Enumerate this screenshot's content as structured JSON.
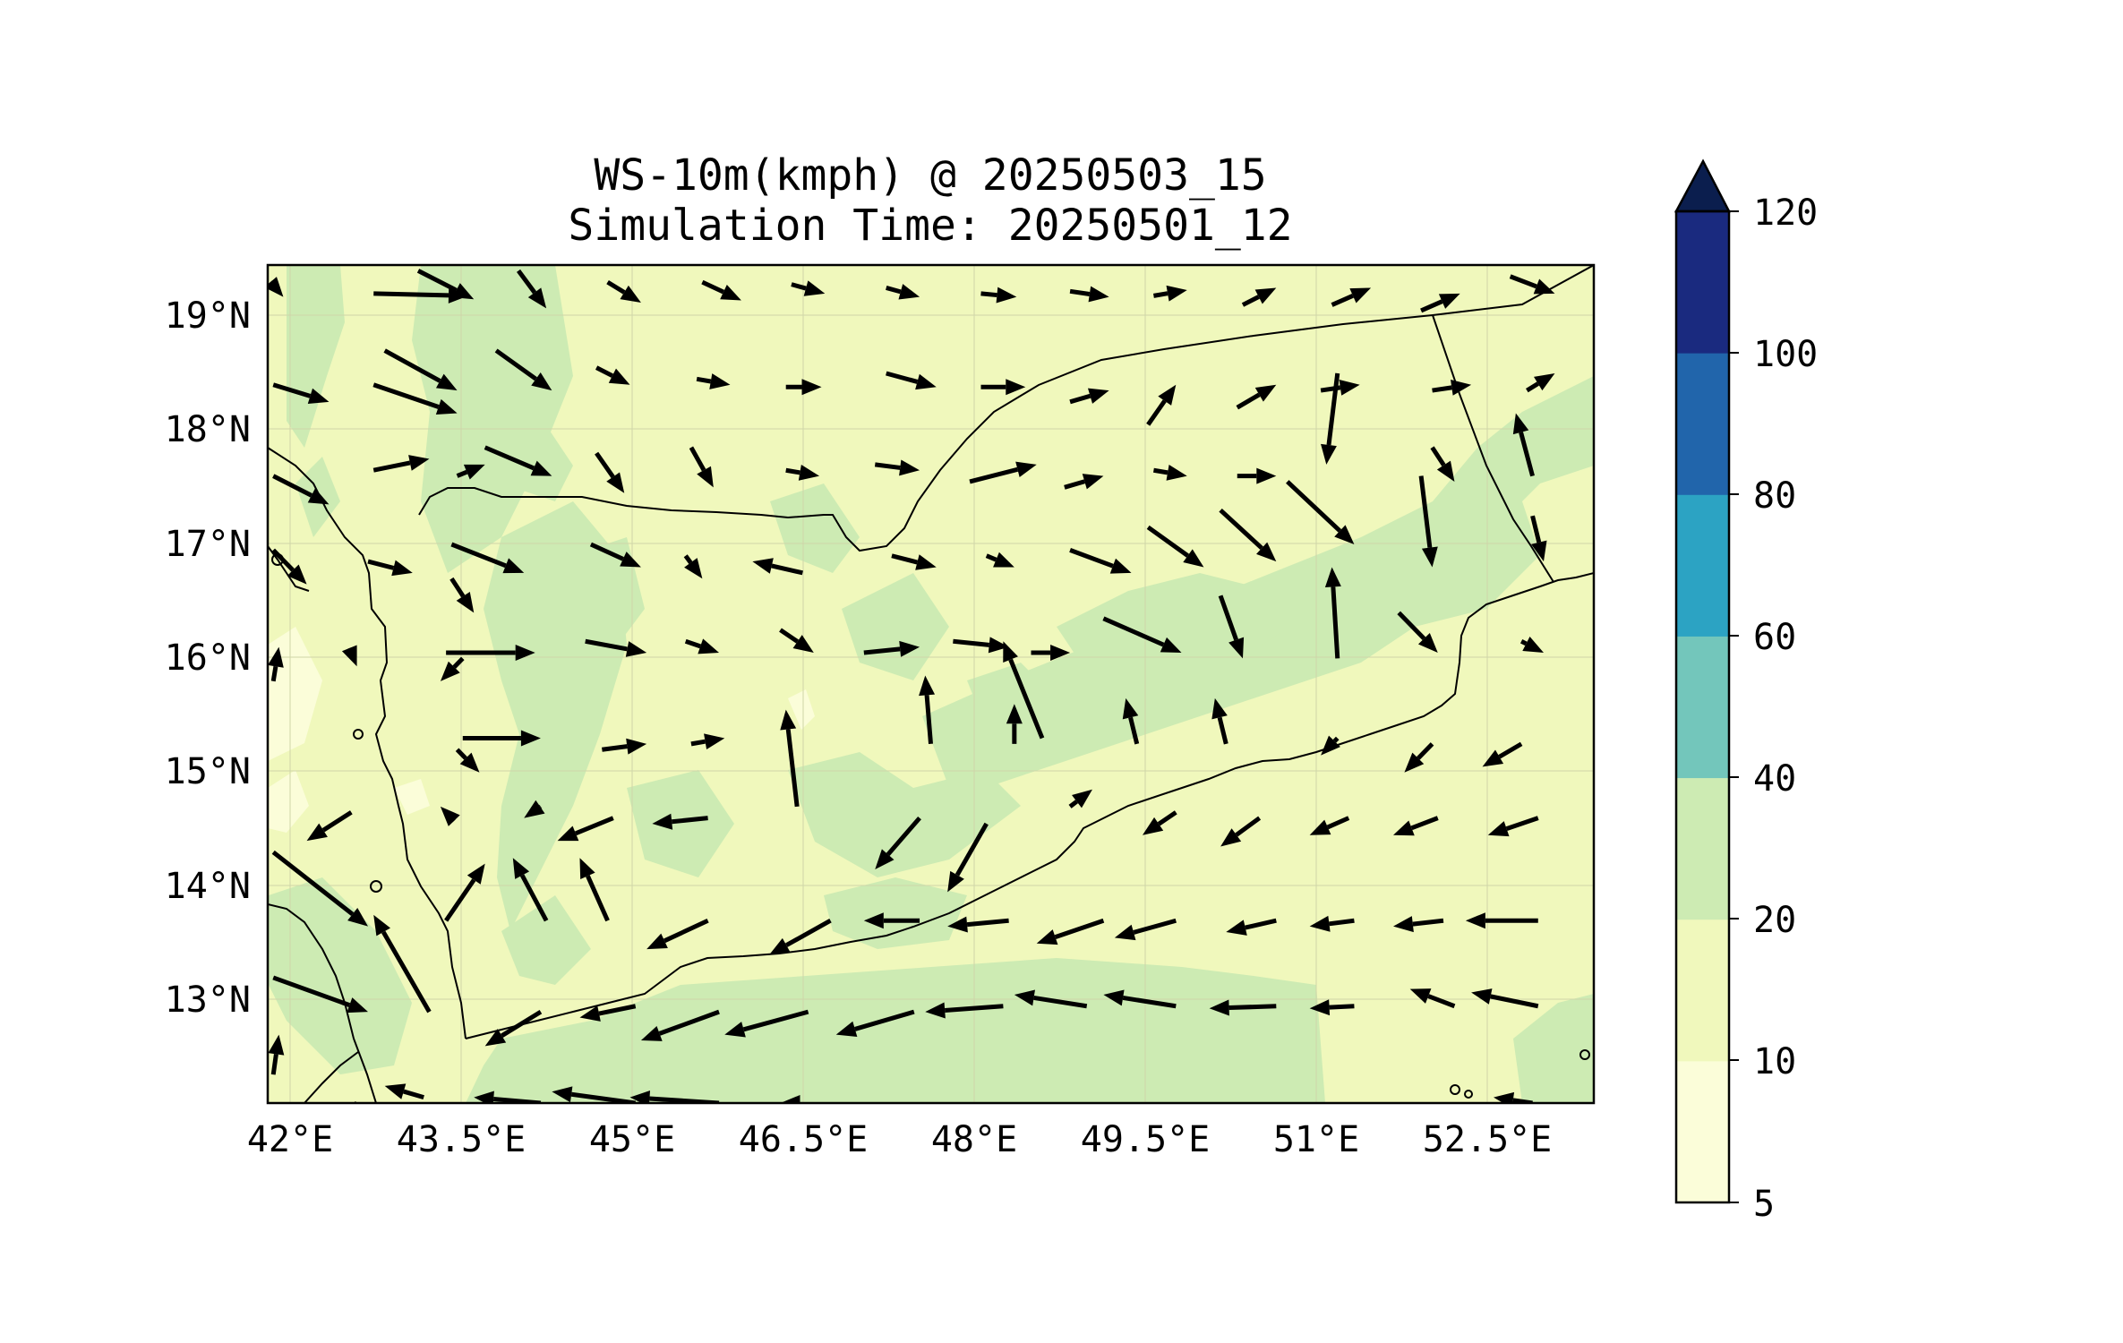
{
  "title": {
    "line1": "WS-10m(kmph) @ 20250503_15",
    "line2": "Simulation Time: 20250501_12"
  },
  "map": {
    "lon_range": [
      41.9,
      53.8
    ],
    "lat_range": [
      12.1,
      19.45
    ],
    "lon_ticks": [
      "42°E",
      "43.5°E",
      "45°E",
      "46.5°E",
      "48°E",
      "49.5°E",
      "51°E",
      "52.5°E"
    ],
    "lat_ticks": [
      "19°N",
      "18°N",
      "17°N",
      "16°N",
      "15°N",
      "14°N",
      "13°N"
    ],
    "gridlines": true,
    "background_fill": "#f0f8bc"
  },
  "colorbar": {
    "levels": [
      "5",
      "10",
      "20",
      "40",
      "60",
      "80",
      "100",
      "120"
    ],
    "colors": [
      "#fbfdd9",
      "#f0f8bc",
      "#cdebb3",
      "#73c6bb",
      "#2ca3c3",
      "#2165ab",
      "#1a2a7f"
    ],
    "extend_color": "#0b1e4e",
    "extend": "max"
  },
  "chart_data": {
    "type": "vector-field",
    "variable": "WS-10m(kmph)",
    "note_units": "arrows: dx,dy in degrees",
    "vectors": [
      [
        41.97,
        19.25,
        0.07,
        -0.08
      ],
      [
        42.85,
        19.2,
        0.85,
        -0.02
      ],
      [
        43.25,
        19.4,
        0.5,
        -0.25
      ],
      [
        44.15,
        19.4,
        0.25,
        -0.33
      ],
      [
        44.95,
        19.3,
        0.3,
        -0.18
      ],
      [
        45.8,
        19.3,
        0.35,
        -0.16
      ],
      [
        46.6,
        19.28,
        0.3,
        -0.08
      ],
      [
        47.45,
        19.25,
        0.3,
        -0.08
      ],
      [
        48.3,
        19.2,
        0.32,
        -0.03
      ],
      [
        49.1,
        19.22,
        0.35,
        -0.05
      ],
      [
        49.85,
        19.18,
        0.3,
        0.05
      ],
      [
        50.65,
        19.1,
        0.3,
        0.15
      ],
      [
        51.45,
        19.1,
        0.35,
        0.15
      ],
      [
        52.25,
        19.05,
        0.35,
        0.15
      ],
      [
        53.05,
        19.35,
        0.4,
        -0.15
      ],
      [
        41.95,
        18.4,
        0.5,
        -0.15
      ],
      [
        42.85,
        18.4,
        0.75,
        -0.25
      ],
      [
        42.95,
        18.7,
        0.65,
        -0.35
      ],
      [
        43.95,
        18.7,
        0.5,
        -0.35
      ],
      [
        44.85,
        18.55,
        0.3,
        -0.15
      ],
      [
        45.75,
        18.45,
        0.3,
        -0.05
      ],
      [
        46.55,
        18.38,
        0.32,
        0.0
      ],
      [
        47.45,
        18.5,
        0.45,
        -0.12
      ],
      [
        48.3,
        18.38,
        0.4,
        0.0
      ],
      [
        49.1,
        18.25,
        0.35,
        0.1
      ],
      [
        49.8,
        18.05,
        0.25,
        0.35
      ],
      [
        50.6,
        18.2,
        0.35,
        0.2
      ],
      [
        51.35,
        18.35,
        0.35,
        0.05
      ],
      [
        52.35,
        18.35,
        0.35,
        0.05
      ],
      [
        53.2,
        18.35,
        0.25,
        0.15
      ],
      [
        42.85,
        17.65,
        0.5,
        0.1
      ],
      [
        43.6,
        17.6,
        0.25,
        0.1
      ],
      [
        43.85,
        17.85,
        0.6,
        -0.25
      ],
      [
        44.85,
        17.8,
        0.25,
        -0.35
      ],
      [
        45.7,
        17.85,
        0.2,
        -0.35
      ],
      [
        46.55,
        17.65,
        0.3,
        -0.05
      ],
      [
        47.35,
        17.7,
        0.4,
        -0.05
      ],
      [
        48.2,
        17.55,
        0.6,
        0.15
      ],
      [
        49.05,
        17.5,
        0.35,
        0.1
      ],
      [
        49.85,
        17.65,
        0.3,
        -0.05
      ],
      [
        50.6,
        17.6,
        0.35,
        0.0
      ],
      [
        51.5,
        18.5,
        -0.1,
        -0.8
      ],
      [
        52.35,
        17.85,
        0.2,
        -0.3
      ],
      [
        53.25,
        17.6,
        -0.15,
        0.55
      ],
      [
        41.95,
        17.6,
        0.5,
        -0.25
      ],
      [
        42.8,
        16.85,
        0.4,
        -0.1
      ],
      [
        43.55,
        17.0,
        0.65,
        -0.25
      ],
      [
        43.55,
        16.7,
        0.2,
        -0.3
      ],
      [
        44.8,
        17.0,
        0.45,
        -0.2
      ],
      [
        45.65,
        16.9,
        0.15,
        -0.2
      ],
      [
        46.7,
        16.75,
        -0.45,
        0.1
      ],
      [
        47.5,
        16.9,
        0.4,
        -0.1
      ],
      [
        48.35,
        16.9,
        0.25,
        -0.1
      ],
      [
        49.1,
        16.95,
        0.55,
        -0.2
      ],
      [
        49.8,
        17.15,
        0.5,
        -0.35
      ],
      [
        50.45,
        17.3,
        0.5,
        -0.45
      ],
      [
        51.05,
        17.55,
        0.6,
        -0.55
      ],
      [
        52.25,
        17.6,
        0.1,
        -0.8
      ],
      [
        53.25,
        17.25,
        0.1,
        -0.4
      ],
      [
        41.95,
        16.95,
        0.3,
        -0.3
      ],
      [
        42.65,
        16.05,
        0.05,
        -0.12
      ],
      [
        43.5,
        16.05,
        0.8,
        0.0
      ],
      [
        43.65,
        16.0,
        -0.2,
        -0.2
      ],
      [
        44.75,
        16.15,
        0.55,
        -0.1
      ],
      [
        45.65,
        16.15,
        0.3,
        -0.1
      ],
      [
        46.5,
        16.25,
        0.3,
        -0.2
      ],
      [
        47.25,
        16.05,
        0.5,
        0.05
      ],
      [
        48.05,
        16.15,
        0.5,
        -0.05
      ],
      [
        48.75,
        16.05,
        0.35,
        0.0
      ],
      [
        48.85,
        15.3,
        -0.35,
        0.85
      ],
      [
        49.4,
        16.35,
        0.7,
        -0.3
      ],
      [
        50.45,
        16.55,
        0.2,
        -0.55
      ],
      [
        51.5,
        16.0,
        -0.05,
        0.8
      ],
      [
        52.05,
        16.4,
        0.35,
        -0.35
      ],
      [
        53.15,
        16.15,
        0.2,
        -0.1
      ],
      [
        41.95,
        15.8,
        0.05,
        0.3
      ],
      [
        43.65,
        15.3,
        0.7,
        0.0
      ],
      [
        43.6,
        15.2,
        0.2,
        -0.2
      ],
      [
        44.9,
        15.2,
        0.4,
        0.05
      ],
      [
        45.7,
        15.25,
        0.3,
        0.05
      ],
      [
        46.65,
        14.7,
        -0.1,
        0.85
      ],
      [
        47.85,
        15.25,
        -0.05,
        0.6
      ],
      [
        48.6,
        15.25,
        0.0,
        0.35
      ],
      [
        49.7,
        15.25,
        -0.1,
        0.4
      ],
      [
        50.5,
        15.25,
        -0.1,
        0.4
      ],
      [
        51.5,
        15.3,
        -0.15,
        -0.15
      ],
      [
        52.35,
        15.25,
        -0.25,
        -0.25
      ],
      [
        53.15,
        15.25,
        -0.35,
        -0.2
      ],
      [
        42.65,
        14.65,
        -0.4,
        -0.25
      ],
      [
        43.5,
        14.65,
        -0.05,
        0.05
      ],
      [
        44.35,
        14.7,
        -0.15,
        -0.1
      ],
      [
        45.0,
        14.6,
        -0.5,
        -0.2
      ],
      [
        45.85,
        14.6,
        -0.5,
        -0.05
      ],
      [
        47.75,
        14.6,
        -0.4,
        -0.45
      ],
      [
        48.35,
        14.55,
        -0.35,
        -0.6
      ],
      [
        49.1,
        14.7,
        0.2,
        0.15
      ],
      [
        50.05,
        14.65,
        -0.3,
        -0.2
      ],
      [
        50.8,
        14.6,
        -0.35,
        -0.25
      ],
      [
        51.6,
        14.6,
        -0.35,
        -0.15
      ],
      [
        52.4,
        14.6,
        -0.4,
        -0.15
      ],
      [
        53.3,
        14.6,
        -0.45,
        -0.15
      ],
      [
        41.95,
        14.3,
        0.85,
        -0.65
      ],
      [
        43.5,
        13.7,
        0.35,
        0.5
      ],
      [
        44.4,
        13.7,
        -0.3,
        0.55
      ],
      [
        44.95,
        13.7,
        -0.25,
        0.55
      ],
      [
        45.85,
        13.7,
        -0.55,
        -0.25
      ],
      [
        46.95,
        13.7,
        -0.55,
        -0.3
      ],
      [
        47.75,
        13.7,
        -0.5,
        0.0
      ],
      [
        48.55,
        13.7,
        -0.55,
        -0.05
      ],
      [
        49.4,
        13.7,
        -0.6,
        -0.2
      ],
      [
        50.05,
        13.7,
        -0.55,
        -0.15
      ],
      [
        50.95,
        13.7,
        -0.45,
        -0.1
      ],
      [
        51.65,
        13.7,
        -0.4,
        -0.05
      ],
      [
        52.45,
        13.7,
        -0.45,
        -0.05
      ],
      [
        53.3,
        13.7,
        -0.65,
        0.0
      ],
      [
        41.95,
        13.2,
        0.85,
        -0.3
      ],
      [
        43.35,
        12.9,
        -0.5,
        0.85
      ],
      [
        44.35,
        12.9,
        -0.5,
        -0.3
      ],
      [
        45.2,
        12.95,
        -0.5,
        -0.1
      ],
      [
        45.95,
        12.9,
        -0.7,
        -0.25
      ],
      [
        46.75,
        12.9,
        -0.75,
        -0.2
      ],
      [
        47.7,
        12.9,
        -0.7,
        -0.2
      ],
      [
        48.5,
        12.95,
        -0.7,
        -0.05
      ],
      [
        49.25,
        12.95,
        -0.65,
        0.1
      ],
      [
        50.05,
        12.95,
        -0.65,
        0.1
      ],
      [
        50.95,
        12.95,
        -0.6,
        -0.02
      ],
      [
        51.65,
        12.95,
        -0.4,
        -0.02
      ],
      [
        52.55,
        12.95,
        -0.4,
        0.15
      ],
      [
        53.3,
        12.95,
        -0.6,
        0.12
      ],
      [
        41.95,
        12.35,
        0.05,
        0.35
      ],
      [
        42.7,
        12.1,
        -0.75,
        -0.55
      ],
      [
        43.3,
        12.15,
        -0.35,
        0.1
      ],
      [
        44.35,
        12.1,
        -0.6,
        0.05
      ],
      [
        45.2,
        12.1,
        -0.75,
        0.1
      ],
      [
        45.95,
        12.1,
        -0.8,
        0.05
      ],
      [
        46.6,
        12.1,
        -0.1,
        0.0
      ],
      [
        53.25,
        12.1,
        -0.35,
        0.05
      ]
    ]
  }
}
